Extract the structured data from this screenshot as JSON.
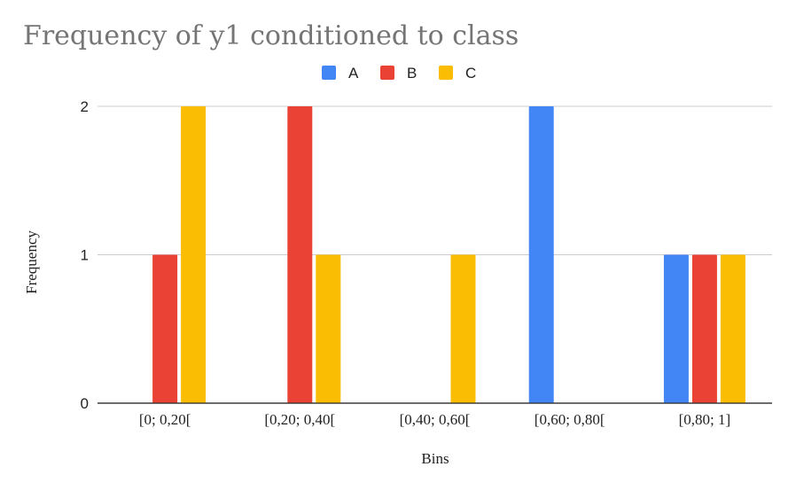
{
  "chart_data": {
    "type": "bar",
    "title": "Frequency of y1 conditioned to class",
    "xlabel": "Bins",
    "ylabel": "Frequency",
    "categories": [
      "[0; 0,20[",
      "[0,20; 0,40[",
      "[0,40; 0,60[",
      "[0,60; 0,80[",
      "[0,80; 1]"
    ],
    "series": [
      {
        "name": "A",
        "color": "#4285f4",
        "values": [
          0,
          0,
          0,
          2,
          1
        ]
      },
      {
        "name": "B",
        "color": "#ea4335",
        "values": [
          1,
          2,
          0,
          0,
          1
        ]
      },
      {
        "name": "C",
        "color": "#fbbc04",
        "values": [
          2,
          1,
          1,
          0,
          1
        ]
      }
    ],
    "ylim": [
      0,
      2
    ],
    "yticks": [
      0,
      1,
      2
    ],
    "grid": true,
    "legend": "top-center"
  }
}
